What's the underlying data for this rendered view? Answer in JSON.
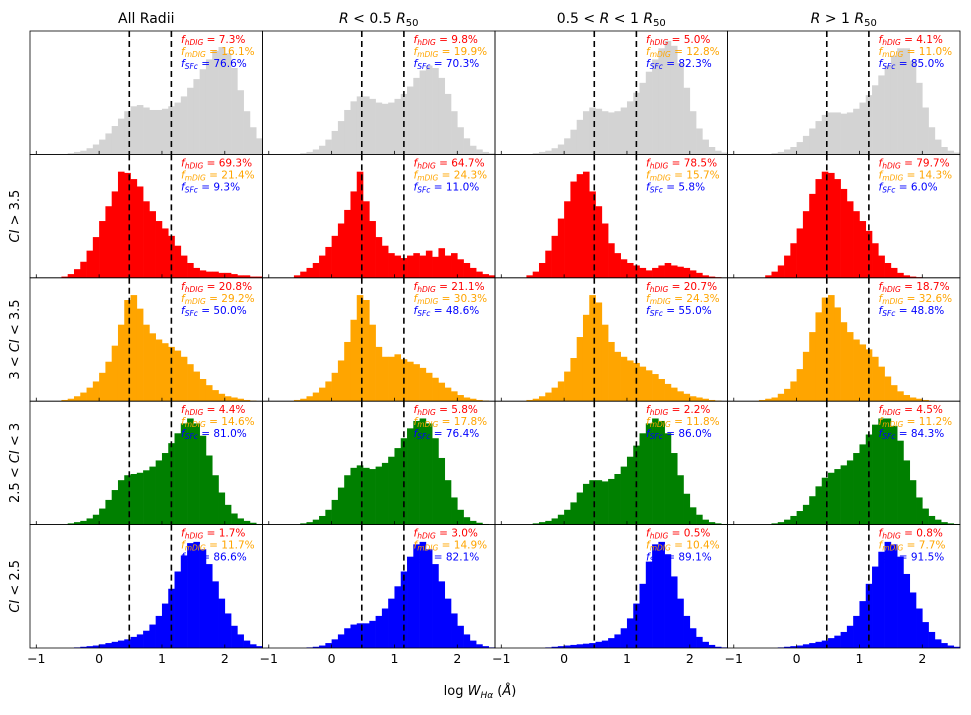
{
  "chart_data": {
    "type": "histogram-grid",
    "xlabel": "log W_Hα (Å)",
    "xlim": [
      -1.1,
      2.6
    ],
    "x_ticks": [
      -1,
      0,
      1,
      2
    ],
    "x_tick_labels": [
      "−1",
      "0",
      "1",
      "2"
    ],
    "thresholds": [
      0.48,
      1.15
    ],
    "columns": [
      "All Radii",
      "R < 0.5 R50",
      "0.5 < R < 1 R50",
      "R > 1 R50"
    ],
    "rows": [
      "",
      "CI > 3.5",
      "3 < CI < 3.5",
      "2.5 < CI < 3",
      "CI < 2.5"
    ],
    "row_colors": [
      "#d3d3d3",
      "#ff0000",
      "#ffa500",
      "#008000",
      "#0000ff"
    ],
    "label_colors": {
      "hDIG": "#ff0000",
      "mDIG": "#ffa500",
      "SFc": "#0000ff"
    },
    "label_names": {
      "hDIG": "f_hDIG",
      "mDIG": "f_mDIG",
      "SFc": "f_SFc"
    },
    "fractions": [
      [
        {
          "hDIG": "7.3%",
          "mDIG": "16.1%",
          "SFc": "76.6%"
        },
        {
          "hDIG": "9.8%",
          "mDIG": "19.9%",
          "SFc": "70.3%"
        },
        {
          "hDIG": "5.0%",
          "mDIG": "12.8%",
          "SFc": "82.3%"
        },
        {
          "hDIG": "4.1%",
          "mDIG": "11.0%",
          "SFc": "85.0%"
        }
      ],
      [
        {
          "hDIG": "69.3%",
          "mDIG": "21.4%",
          "SFc": "9.3%"
        },
        {
          "hDIG": "64.7%",
          "mDIG": "24.3%",
          "SFc": "11.0%"
        },
        {
          "hDIG": "78.5%",
          "mDIG": "15.7%",
          "SFc": "5.8%"
        },
        {
          "hDIG": "79.7%",
          "mDIG": "14.3%",
          "SFc": "6.0%"
        }
      ],
      [
        {
          "hDIG": "20.8%",
          "mDIG": "29.2%",
          "SFc": "50.0%"
        },
        {
          "hDIG": "21.1%",
          "mDIG": "30.3%",
          "SFc": "48.6%"
        },
        {
          "hDIG": "20.7%",
          "mDIG": "24.3%",
          "SFc": "55.0%"
        },
        {
          "hDIG": "18.7%",
          "mDIG": "32.6%",
          "SFc": "48.8%"
        }
      ],
      [
        {
          "hDIG": "4.4%",
          "mDIG": "14.6%",
          "SFc": "81.0%"
        },
        {
          "hDIG": "5.8%",
          "mDIG": "17.8%",
          "SFc": "76.4%"
        },
        {
          "hDIG": "2.2%",
          "mDIG": "11.8%",
          "SFc": "86.0%"
        },
        {
          "hDIG": "4.5%",
          "mDIG": "11.2%",
          "SFc": "84.3%"
        }
      ],
      [
        {
          "hDIG": "1.7%",
          "mDIG": "11.7%",
          "SFc": "86.6%"
        },
        {
          "hDIG": "3.0%",
          "mDIG": "14.9%",
          "SFc": "82.1%"
        },
        {
          "hDIG": "0.5%",
          "mDIG": "10.4%",
          "SFc": "89.1%"
        },
        {
          "hDIG": "0.8%",
          "mDIG": "7.7%",
          "SFc": "91.5%"
        }
      ]
    ],
    "bin_width": 0.1,
    "bin_start": -1.1,
    "histograms": [
      [
        [
          0,
          0,
          0,
          0,
          0,
          0,
          0.01,
          0.02,
          0.03,
          0.05,
          0.08,
          0.12,
          0.17,
          0.23,
          0.29,
          0.35,
          0.39,
          0.4,
          0.38,
          0.36,
          0.36,
          0.37,
          0.39,
          0.42,
          0.47,
          0.54,
          0.61,
          0.69,
          0.77,
          0.84,
          0.87,
          0.82,
          0.7,
          0.52,
          0.35,
          0.22,
          0.13,
          0.07,
          0.04,
          0.02,
          0.01,
          0.005,
          0,
          0,
          0,
          0,
          0
        ],
        [
          0,
          0,
          0,
          0,
          0,
          0,
          0.01,
          0.02,
          0.04,
          0.07,
          0.12,
          0.19,
          0.27,
          0.36,
          0.43,
          0.47,
          0.47,
          0.45,
          0.42,
          0.41,
          0.42,
          0.45,
          0.49,
          0.55,
          0.62,
          0.68,
          0.72,
          0.7,
          0.62,
          0.49,
          0.35,
          0.22,
          0.13,
          0.07,
          0.04,
          0.02,
          0.01,
          0.005,
          0,
          0,
          0,
          0,
          0,
          0,
          0,
          0,
          0
        ],
        [
          0,
          0,
          0,
          0,
          0,
          0,
          0.01,
          0.02,
          0.03,
          0.05,
          0.08,
          0.13,
          0.2,
          0.28,
          0.35,
          0.38,
          0.37,
          0.35,
          0.34,
          0.35,
          0.38,
          0.43,
          0.5,
          0.58,
          0.67,
          0.77,
          0.86,
          0.92,
          0.88,
          0.74,
          0.54,
          0.35,
          0.21,
          0.12,
          0.06,
          0.03,
          0.015,
          0.005,
          0,
          0,
          0,
          0,
          0,
          0,
          0,
          0,
          0
        ],
        [
          0,
          0,
          0,
          0,
          0,
          0,
          0,
          0.01,
          0.02,
          0.04,
          0.06,
          0.1,
          0.15,
          0.21,
          0.27,
          0.32,
          0.34,
          0.34,
          0.33,
          0.34,
          0.37,
          0.42,
          0.48,
          0.56,
          0.64,
          0.72,
          0.8,
          0.86,
          0.86,
          0.76,
          0.58,
          0.38,
          0.22,
          0.12,
          0.06,
          0.03,
          0.015,
          0.005,
          0,
          0,
          0,
          0,
          0,
          0,
          0,
          0,
          0
        ]
      ],
      [
        [
          0,
          0,
          0,
          0,
          0,
          0.01,
          0.03,
          0.07,
          0.13,
          0.22,
          0.33,
          0.46,
          0.58,
          0.7,
          0.86,
          0.85,
          0.8,
          0.74,
          0.62,
          0.54,
          0.46,
          0.4,
          0.34,
          0.26,
          0.18,
          0.12,
          0.08,
          0.06,
          0.05,
          0.05,
          0.04,
          0.04,
          0.03,
          0.02,
          0.02,
          0.01,
          0.01,
          0.005,
          0,
          0,
          0,
          0,
          0,
          0,
          0,
          0,
          0
        ],
        [
          0,
          0,
          0,
          0,
          0,
          0.02,
          0.05,
          0.08,
          0.12,
          0.18,
          0.25,
          0.34,
          0.44,
          0.55,
          0.7,
          0.86,
          0.62,
          0.46,
          0.33,
          0.26,
          0.2,
          0.18,
          0.16,
          0.18,
          0.2,
          0.18,
          0.22,
          0.17,
          0.24,
          0.18,
          0.2,
          0.15,
          0.12,
          0.08,
          0.05,
          0.03,
          0.02,
          0.01,
          0.005,
          0,
          0,
          0,
          0,
          0,
          0,
          0,
          0
        ],
        [
          0,
          0,
          0,
          0,
          0,
          0.02,
          0.05,
          0.12,
          0.22,
          0.34,
          0.48,
          0.62,
          0.78,
          0.84,
          0.86,
          0.7,
          0.58,
          0.44,
          0.28,
          0.2,
          0.15,
          0.12,
          0.1,
          0.08,
          0.06,
          0.08,
          0.1,
          0.12,
          0.1,
          0.09,
          0.08,
          0.06,
          0.04,
          0.02,
          0.01,
          0.005,
          0,
          0,
          0,
          0,
          0,
          0,
          0,
          0,
          0,
          0,
          0
        ],
        [
          0,
          0,
          0,
          0,
          0,
          0,
          0.02,
          0.05,
          0.1,
          0.18,
          0.28,
          0.4,
          0.54,
          0.68,
          0.8,
          0.86,
          0.85,
          0.8,
          0.72,
          0.62,
          0.54,
          0.46,
          0.38,
          0.28,
          0.18,
          0.12,
          0.08,
          0.04,
          0.02,
          0.01,
          0.005,
          0,
          0,
          0,
          0,
          0,
          0,
          0,
          0,
          0,
          0,
          0,
          0,
          0,
          0,
          0,
          0
        ]
      ],
      [
        [
          0,
          0,
          0,
          0,
          0,
          0.01,
          0.02,
          0.04,
          0.07,
          0.11,
          0.16,
          0.23,
          0.32,
          0.45,
          0.62,
          0.82,
          0.86,
          0.75,
          0.62,
          0.55,
          0.5,
          0.47,
          0.44,
          0.41,
          0.36,
          0.3,
          0.24,
          0.18,
          0.13,
          0.09,
          0.06,
          0.04,
          0.03,
          0.02,
          0.01,
          0.005,
          0,
          0,
          0,
          0,
          0,
          0,
          0,
          0,
          0,
          0,
          0
        ],
        [
          0,
          0,
          0,
          0,
          0,
          0.01,
          0.02,
          0.04,
          0.07,
          0.11,
          0.16,
          0.23,
          0.33,
          0.48,
          0.66,
          0.86,
          0.82,
          0.62,
          0.44,
          0.36,
          0.36,
          0.38,
          0.34,
          0.32,
          0.3,
          0.27,
          0.23,
          0.19,
          0.15,
          0.11,
          0.08,
          0.05,
          0.03,
          0.02,
          0.01,
          0.005,
          0,
          0,
          0,
          0,
          0,
          0,
          0,
          0,
          0,
          0,
          0
        ],
        [
          0,
          0,
          0,
          0,
          0,
          0.01,
          0.02,
          0.04,
          0.07,
          0.11,
          0.16,
          0.24,
          0.35,
          0.52,
          0.7,
          0.86,
          0.8,
          0.62,
          0.48,
          0.4,
          0.36,
          0.33,
          0.31,
          0.28,
          0.25,
          0.22,
          0.18,
          0.14,
          0.11,
          0.08,
          0.06,
          0.04,
          0.03,
          0.02,
          0.01,
          0.005,
          0,
          0,
          0,
          0,
          0,
          0,
          0,
          0,
          0,
          0,
          0
        ],
        [
          0,
          0,
          0,
          0,
          0,
          0.01,
          0.02,
          0.03,
          0.06,
          0.1,
          0.16,
          0.26,
          0.4,
          0.56,
          0.72,
          0.84,
          0.86,
          0.76,
          0.64,
          0.56,
          0.5,
          0.46,
          0.42,
          0.36,
          0.28,
          0.2,
          0.13,
          0.08,
          0.05,
          0.03,
          0.02,
          0.01,
          0.005,
          0,
          0,
          0,
          0,
          0,
          0,
          0,
          0,
          0,
          0,
          0,
          0,
          0,
          0
        ]
      ],
      [
        [
          0,
          0,
          0,
          0,
          0,
          0,
          0.01,
          0.02,
          0.03,
          0.05,
          0.08,
          0.13,
          0.2,
          0.28,
          0.36,
          0.4,
          0.41,
          0.42,
          0.44,
          0.47,
          0.52,
          0.58,
          0.66,
          0.74,
          0.82,
          0.86,
          0.82,
          0.72,
          0.56,
          0.4,
          0.26,
          0.16,
          0.09,
          0.05,
          0.03,
          0.015,
          0.005,
          0,
          0,
          0,
          0,
          0,
          0,
          0,
          0,
          0,
          0
        ],
        [
          0,
          0,
          0,
          0,
          0,
          0,
          0.01,
          0.02,
          0.04,
          0.07,
          0.12,
          0.2,
          0.3,
          0.4,
          0.46,
          0.48,
          0.46,
          0.45,
          0.47,
          0.5,
          0.55,
          0.62,
          0.7,
          0.78,
          0.84,
          0.86,
          0.82,
          0.7,
          0.54,
          0.36,
          0.22,
          0.12,
          0.06,
          0.03,
          0.015,
          0.005,
          0,
          0,
          0,
          0,
          0,
          0,
          0,
          0,
          0,
          0,
          0
        ],
        [
          0,
          0,
          0,
          0,
          0,
          0,
          0.01,
          0.02,
          0.03,
          0.05,
          0.08,
          0.12,
          0.18,
          0.26,
          0.33,
          0.36,
          0.36,
          0.35,
          0.37,
          0.41,
          0.47,
          0.55,
          0.64,
          0.74,
          0.82,
          0.86,
          0.84,
          0.74,
          0.58,
          0.4,
          0.25,
          0.14,
          0.08,
          0.04,
          0.02,
          0.01,
          0.005,
          0,
          0,
          0,
          0,
          0,
          0,
          0,
          0,
          0,
          0
        ],
        [
          0,
          0,
          0,
          0,
          0,
          0,
          0,
          0.01,
          0.02,
          0.04,
          0.07,
          0.11,
          0.16,
          0.23,
          0.31,
          0.38,
          0.42,
          0.45,
          0.48,
          0.52,
          0.58,
          0.65,
          0.73,
          0.81,
          0.86,
          0.86,
          0.8,
          0.68,
          0.52,
          0.36,
          0.22,
          0.13,
          0.07,
          0.04,
          0.02,
          0.01,
          0.005,
          0,
          0,
          0,
          0,
          0,
          0,
          0,
          0,
          0,
          0
        ]
      ],
      [
        [
          0,
          0,
          0,
          0,
          0,
          0,
          0,
          0.005,
          0.01,
          0.015,
          0.02,
          0.03,
          0.04,
          0.05,
          0.06,
          0.07,
          0.09,
          0.11,
          0.14,
          0.19,
          0.26,
          0.36,
          0.48,
          0.62,
          0.75,
          0.85,
          0.86,
          0.8,
          0.68,
          0.54,
          0.4,
          0.28,
          0.18,
          0.11,
          0.06,
          0.03,
          0.015,
          0.005,
          0,
          0,
          0,
          0,
          0,
          0,
          0,
          0,
          0
        ],
        [
          0,
          0,
          0,
          0,
          0,
          0,
          0,
          0.005,
          0.01,
          0.02,
          0.04,
          0.07,
          0.11,
          0.16,
          0.19,
          0.2,
          0.2,
          0.22,
          0.26,
          0.32,
          0.4,
          0.5,
          0.62,
          0.74,
          0.84,
          0.86,
          0.8,
          0.68,
          0.54,
          0.4,
          0.28,
          0.18,
          0.11,
          0.06,
          0.03,
          0.015,
          0.005,
          0,
          0,
          0,
          0,
          0,
          0,
          0,
          0,
          0,
          0
        ],
        [
          0,
          0,
          0,
          0,
          0,
          0,
          0,
          0,
          0.005,
          0.01,
          0.015,
          0.02,
          0.025,
          0.03,
          0.035,
          0.04,
          0.05,
          0.06,
          0.08,
          0.11,
          0.16,
          0.24,
          0.36,
          0.52,
          0.7,
          0.84,
          0.86,
          0.76,
          0.58,
          0.4,
          0.26,
          0.16,
          0.09,
          0.05,
          0.025,
          0.01,
          0.005,
          0,
          0,
          0,
          0,
          0,
          0,
          0,
          0,
          0,
          0
        ],
        [
          0,
          0,
          0,
          0,
          0,
          0,
          0,
          0,
          0.005,
          0.01,
          0.015,
          0.02,
          0.03,
          0.04,
          0.05,
          0.06,
          0.08,
          0.1,
          0.13,
          0.18,
          0.26,
          0.38,
          0.52,
          0.66,
          0.78,
          0.86,
          0.84,
          0.74,
          0.6,
          0.45,
          0.32,
          0.21,
          0.13,
          0.07,
          0.04,
          0.02,
          0.01,
          0.005,
          0,
          0,
          0,
          0,
          0,
          0,
          0,
          0,
          0
        ]
      ]
    ]
  }
}
